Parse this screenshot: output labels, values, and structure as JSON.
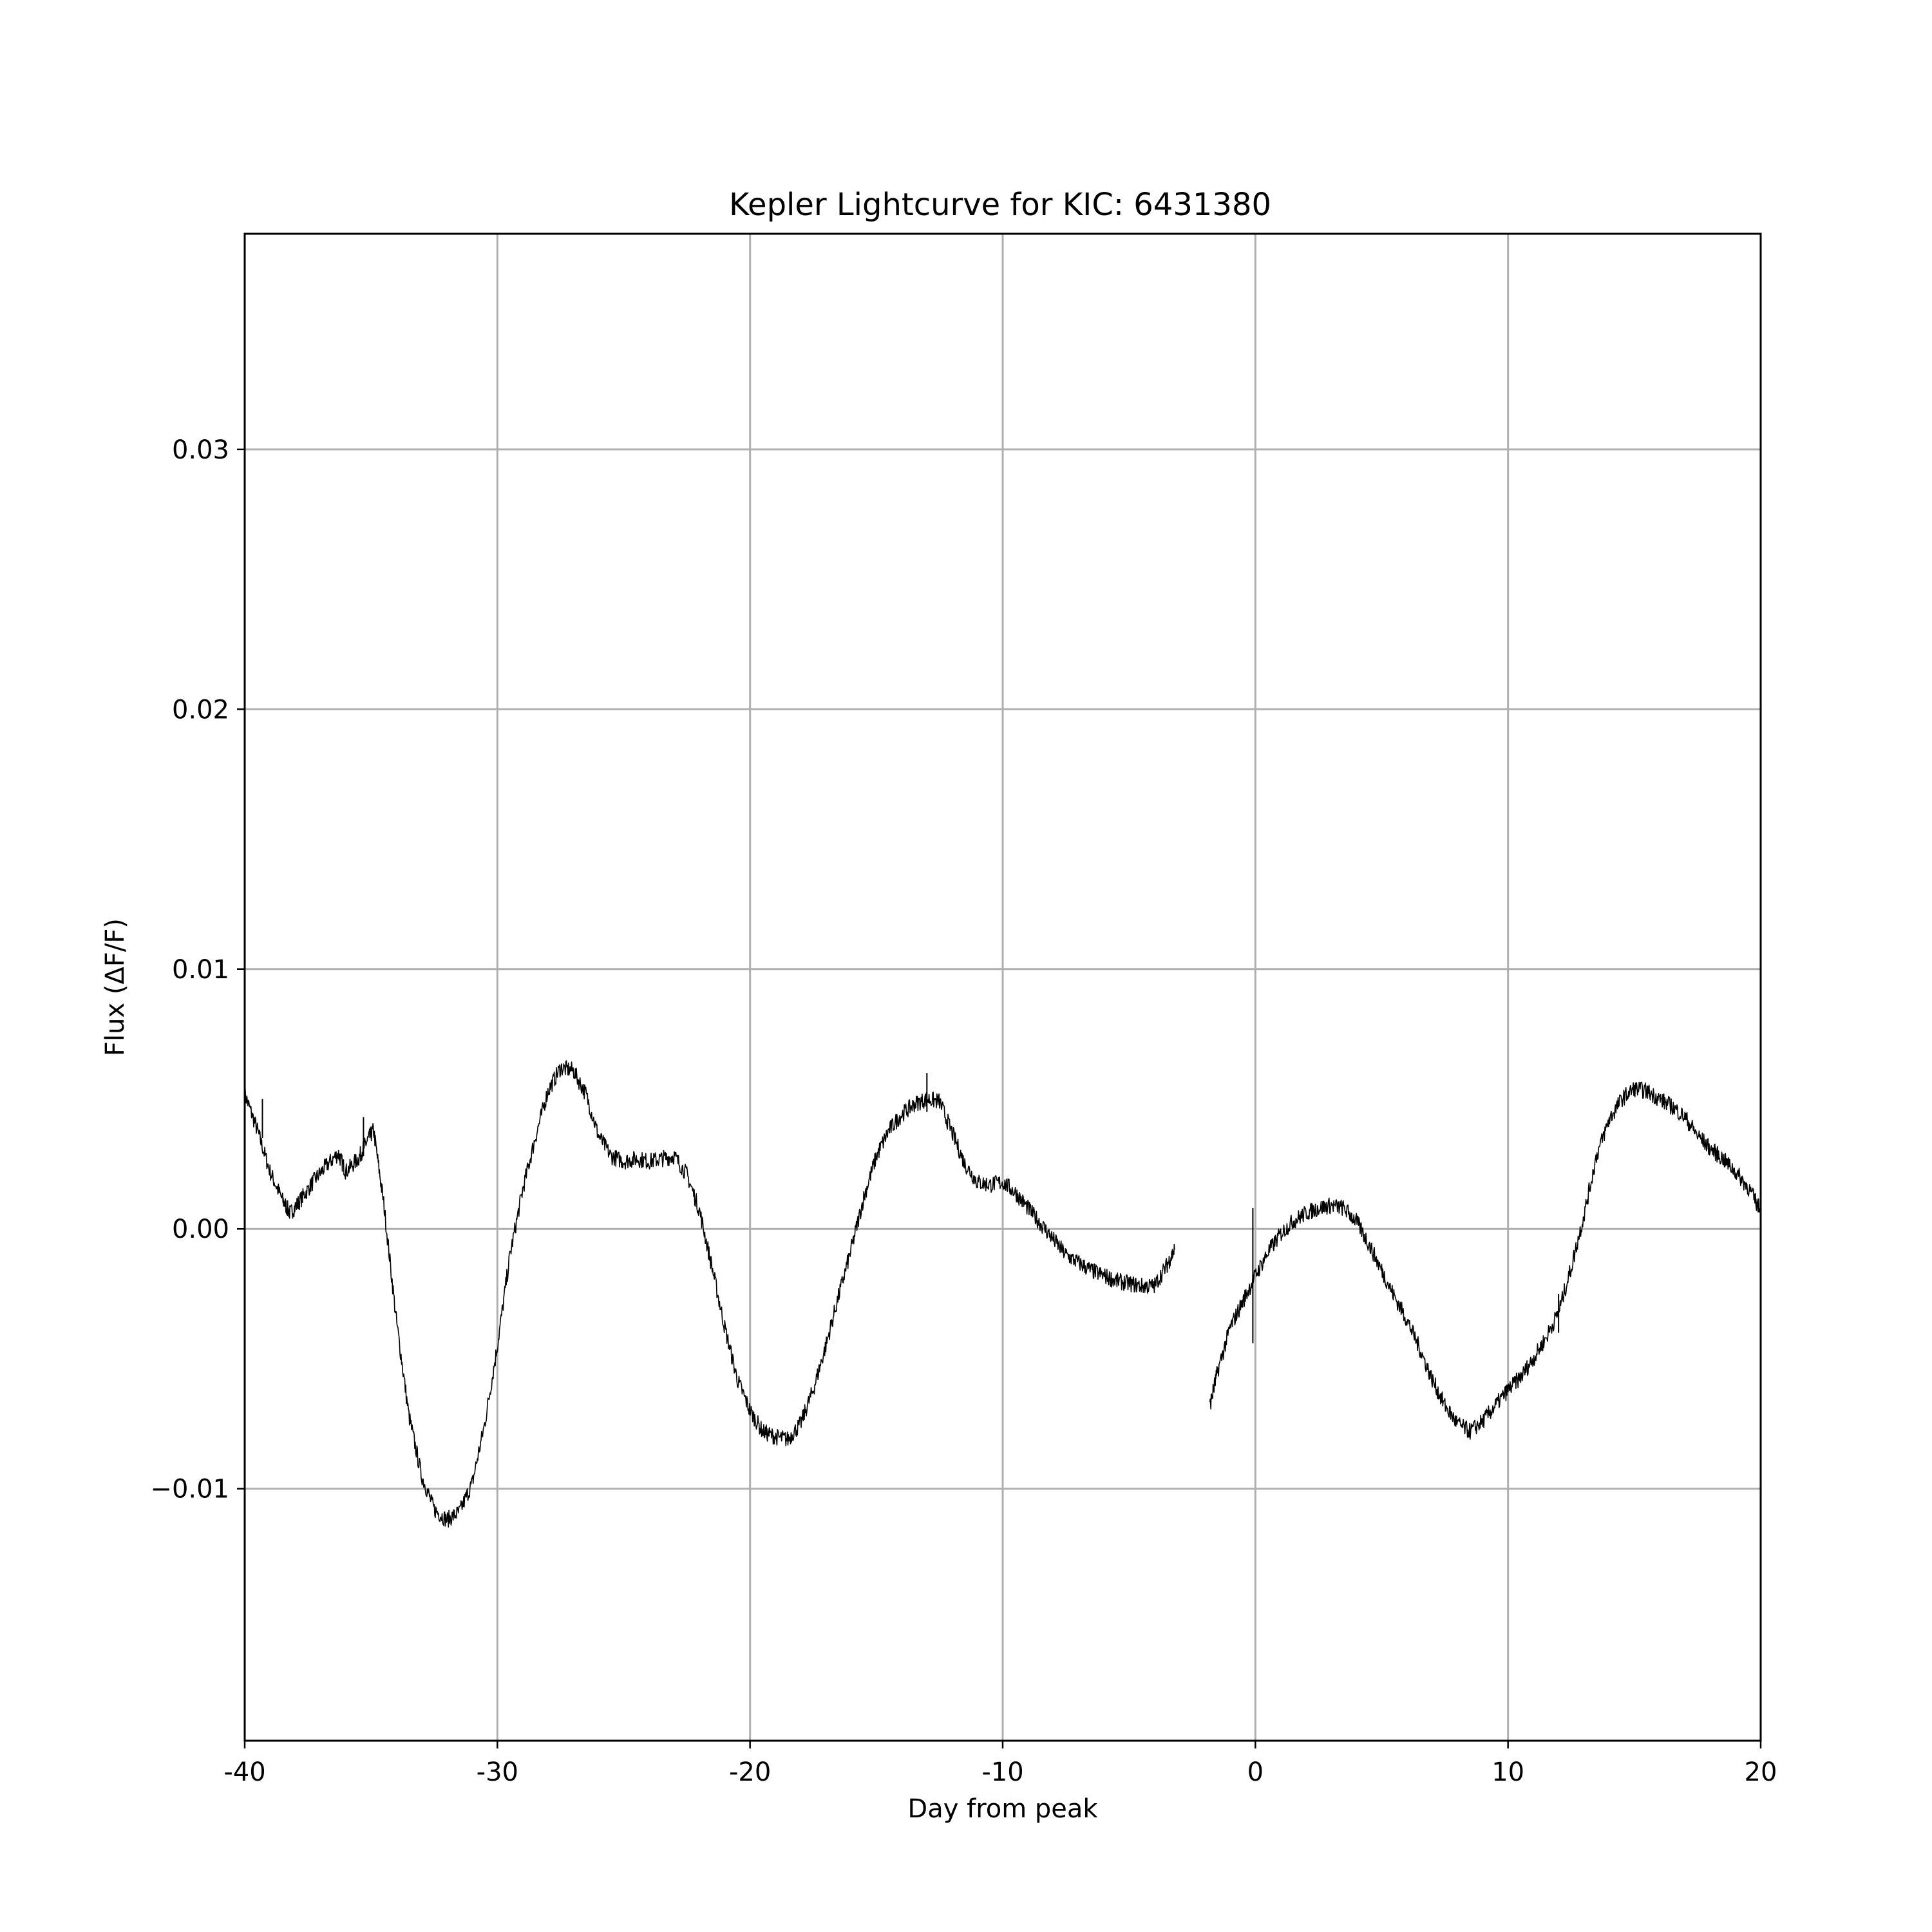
{
  "chart_data": {
    "type": "line",
    "title": "Kepler Lightcurve for KIC: 6431380",
    "xlabel": "Day from peak",
    "ylabel": "Flux (ΔF/F)",
    "xlim": [
      -40,
      20
    ],
    "ylim": [
      -0.0197,
      0.0383
    ],
    "xticks": [
      -40,
      -30,
      -20,
      -10,
      0,
      10,
      20
    ],
    "xtick_labels": [
      "-40",
      "-30",
      "-20",
      "-10",
      "0",
      "10",
      "20"
    ],
    "yticks": [
      -0.01,
      0.0,
      0.01,
      0.02,
      0.03
    ],
    "ytick_labels": [
      "−0.01",
      "0.00",
      "0.01",
      "0.02",
      "0.03"
    ],
    "grid": true,
    "series": [
      {
        "color": "#000000",
        "segments": [
          {
            "x": [
              -40.0,
              -39.5,
              -39.0,
              -38.5,
              -38.2,
              -37.8,
              -37.3,
              -36.8,
              -36.3,
              -36.0,
              -35.5,
              -35.2,
              -34.9,
              -34.5,
              -34.0,
              -33.5,
              -33.0,
              -32.5,
              -32.0,
              -31.5,
              -31.0,
              -30.5,
              -30.0,
              -29.5,
              -29.0,
              -28.5,
              -28.0,
              -27.5,
              -27.0,
              -26.5,
              -26.0,
              -25.5,
              -25.0,
              -24.5,
              -24.0,
              -23.5,
              -23.0,
              -22.5,
              -22.0,
              -21.5,
              -21.0,
              -20.5,
              -20.0,
              -19.5,
              -19.0,
              -18.5,
              -18.0,
              -17.5,
              -17.0,
              -16.5,
              -16.0,
              -15.5,
              -15.0,
              -14.5,
              -14.0,
              -13.5,
              -13.0,
              -12.5,
              -12.0,
              -11.5,
              -11.0,
              -10.5,
              -10.0,
              -9.5,
              -9.0,
              -8.5,
              -8.0,
              -7.5,
              -7.0,
              -6.5,
              -6.0,
              -5.5,
              -5.0,
              -4.5,
              -4.0,
              -3.5,
              -3.2
            ],
            "y": [
              0.0052,
              0.0038,
              0.0022,
              0.0011,
              0.0006,
              0.0011,
              0.0018,
              0.0024,
              0.0029,
              0.0022,
              0.0027,
              0.0033,
              0.0038,
              0.001,
              -0.0035,
              -0.0072,
              -0.0095,
              -0.0108,
              -0.0112,
              -0.0109,
              -0.0098,
              -0.0075,
              -0.0045,
              -0.001,
              0.0015,
              0.0035,
              0.0053,
              0.0062,
              0.0061,
              0.0052,
              0.0036,
              0.0028,
              0.0026,
              0.0027,
              0.0026,
              0.0027,
              0.0028,
              0.0021,
              0.0007,
              -0.0015,
              -0.0038,
              -0.0058,
              -0.007,
              -0.0078,
              -0.008,
              -0.0081,
              -0.0075,
              -0.0062,
              -0.0045,
              -0.0026,
              -0.0008,
              0.0012,
              0.0028,
              0.0038,
              0.0044,
              0.0048,
              0.005,
              0.0049,
              0.0037,
              0.0025,
              0.0018,
              0.0017,
              0.0018,
              0.0014,
              0.0008,
              0.0002,
              -0.0004,
              -0.001,
              -0.0013,
              -0.0016,
              -0.0018,
              -0.002,
              -0.0021,
              -0.0022,
              -0.0022,
              -0.0014,
              -0.0008
            ]
          },
          {
            "x": [
              -1.8,
              -1.5,
              -1.0,
              -0.5,
              0.0,
              0.5,
              1.0,
              1.5,
              2.0,
              2.5,
              3.0,
              3.5,
              4.0,
              4.5,
              5.0,
              5.5,
              6.0,
              6.5,
              7.0,
              7.5,
              8.0,
              8.5,
              9.0,
              9.5,
              10.0,
              10.5,
              11.0,
              11.5,
              12.0,
              12.5,
              13.0,
              13.5,
              14.0,
              14.5,
              15.0,
              15.5,
              16.0,
              16.5,
              17.0,
              17.5,
              18.0,
              18.5,
              19.0,
              19.5,
              20.0
            ],
            "y": [
              -0.0068,
              -0.0055,
              -0.0038,
              -0.0028,
              -0.0018,
              -0.0009,
              -0.0002,
              0.0003,
              0.0006,
              0.0008,
              0.0009,
              0.0008,
              0.0003,
              -0.0006,
              -0.0016,
              -0.0026,
              -0.0035,
              -0.0046,
              -0.0058,
              -0.0068,
              -0.0075,
              -0.0078,
              -0.0074,
              -0.0068,
              -0.0062,
              -0.0057,
              -0.005,
              -0.0042,
              -0.0032,
              -0.0015,
              0.0005,
              0.0028,
              0.0042,
              0.005,
              0.0054,
              0.0053,
              0.005,
              0.0047,
              0.0043,
              0.0036,
              0.0031,
              0.0027,
              0.0022,
              0.0016,
              0.0007
            ]
          }
        ],
        "spikes": [
          {
            "x": -39.3,
            "y0": 0.0035,
            "y1": 0.005
          },
          {
            "x": -35.3,
            "y0": 0.0028,
            "y1": 0.0043
          },
          {
            "x": -13.0,
            "y0": 0.0045,
            "y1": 0.006
          },
          {
            "x": -0.1,
            "y0": -0.0044,
            "y1": 0.0008
          },
          {
            "x": 12.0,
            "y0": -0.004,
            "y1": -0.0025
          }
        ]
      }
    ]
  }
}
